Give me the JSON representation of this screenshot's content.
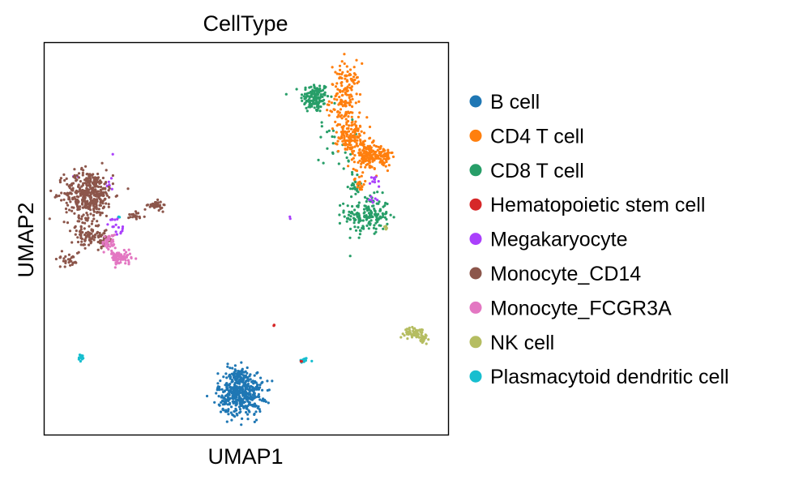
{
  "chart_data": {
    "type": "scatter",
    "title": "CellType",
    "xlabel": "UMAP1",
    "ylabel": "UMAP2",
    "xlim": [
      0,
      100
    ],
    "ylim": [
      0,
      100
    ],
    "ticks": "none",
    "grid": false,
    "legend_position": "right-outside",
    "legend": [
      {
        "name": "B cell",
        "color": "#1f77b4"
      },
      {
        "name": "CD4 T cell",
        "color": "#ff7f0e"
      },
      {
        "name": "CD8 T cell",
        "color": "#279e68"
      },
      {
        "name": "Hematopoietic stem cell",
        "color": "#d62728"
      },
      {
        "name": "Megakaryocyte",
        "color": "#aa40fc"
      },
      {
        "name": "Monocyte_CD14",
        "color": "#8c564b"
      },
      {
        "name": "Monocyte_FCGR3A",
        "color": "#e377c2"
      },
      {
        "name": "NK cell",
        "color": "#b5bd61"
      },
      {
        "name": "Plasmacytoid dendritic cell",
        "color": "#17becf"
      }
    ],
    "clusters": [
      {
        "series": "CD8 T cell",
        "blobs": [
          {
            "cx": 67,
            "cy": 86,
            "rx": 3.2,
            "ry": 3.5,
            "n": 140
          },
          {
            "cx": 80,
            "cy": 56,
            "rx": 5.0,
            "ry": 4.5,
            "n": 170
          },
          {
            "cx": 77,
            "cy": 64,
            "rx": 1.6,
            "ry": 3.0,
            "n": 25
          },
          {
            "cx": 72,
            "cy": 74,
            "rx": 4.0,
            "ry": 6.0,
            "n": 25
          }
        ]
      },
      {
        "series": "CD4 T cell",
        "blobs": [
          {
            "cx": 74.5,
            "cy": 86,
            "rx": 3.5,
            "ry": 8.0,
            "n": 170
          },
          {
            "cx": 76,
            "cy": 76,
            "rx": 2.8,
            "ry": 3.5,
            "n": 120
          },
          {
            "cx": 80,
            "cy": 71,
            "rx": 3.0,
            "ry": 3.0,
            "n": 140
          },
          {
            "cx": 84,
            "cy": 71,
            "rx": 2.0,
            "ry": 2.5,
            "n": 60
          },
          {
            "cx": 78,
            "cy": 64,
            "rx": 1.2,
            "ry": 2.0,
            "n": 20
          }
        ]
      },
      {
        "series": "Megakaryocyte",
        "blobs": [
          {
            "cx": 82,
            "cy": 65,
            "rx": 1.2,
            "ry": 1.5,
            "n": 10
          },
          {
            "cx": 81.5,
            "cy": 60,
            "rx": 1.0,
            "ry": 1.2,
            "n": 6
          },
          {
            "cx": 16,
            "cy": 65,
            "rx": 1.0,
            "ry": 3.5,
            "n": 8
          },
          {
            "cx": 17,
            "cy": 55,
            "rx": 1.0,
            "ry": 2.5,
            "n": 10
          },
          {
            "cx": 19,
            "cy": 52,
            "rx": 1.5,
            "ry": 1.5,
            "n": 8
          },
          {
            "cx": 61,
            "cy": 55.5,
            "rx": 0.3,
            "ry": 0.3,
            "n": 2
          },
          {
            "cx": 8,
            "cy": 66,
            "rx": 0.8,
            "ry": 0.8,
            "n": 2
          }
        ]
      },
      {
        "series": "Monocyte_CD14",
        "blobs": [
          {
            "cx": 11,
            "cy": 61.5,
            "rx": 5.5,
            "ry": 5.5,
            "n": 400
          },
          {
            "cx": 10,
            "cy": 51,
            "rx": 3.0,
            "ry": 3.0,
            "n": 70
          },
          {
            "cx": 14,
            "cy": 50,
            "rx": 3.0,
            "ry": 2.2,
            "n": 50
          },
          {
            "cx": 6,
            "cy": 45,
            "rx": 2.8,
            "ry": 2.2,
            "n": 30
          },
          {
            "cx": 27.5,
            "cy": 58.5,
            "rx": 1.6,
            "ry": 1.0,
            "n": 40
          },
          {
            "cx": 23,
            "cy": 56,
            "rx": 2.0,
            "ry": 0.8,
            "n": 20
          }
        ]
      },
      {
        "series": "Monocyte_FCGR3A",
        "blobs": [
          {
            "cx": 19,
            "cy": 45,
            "rx": 2.3,
            "ry": 1.6,
            "n": 70
          },
          {
            "cx": 16,
            "cy": 49,
            "rx": 1.5,
            "ry": 2.0,
            "n": 40
          },
          {
            "cx": 17.5,
            "cy": 46,
            "rx": 1.0,
            "ry": 1.2,
            "n": 15
          }
        ]
      },
      {
        "series": "B cell",
        "blobs": [
          {
            "cx": 48.5,
            "cy": 10.5,
            "rx": 5.0,
            "ry": 5.0,
            "n": 420
          },
          {
            "cx": 48,
            "cy": 15,
            "rx": 3.0,
            "ry": 2.0,
            "n": 60
          }
        ]
      },
      {
        "series": "NK cell",
        "blobs": [
          {
            "cx": 92,
            "cy": 26,
            "rx": 2.5,
            "ry": 1.2,
            "n": 60
          },
          {
            "cx": 94,
            "cy": 24.5,
            "rx": 1.2,
            "ry": 1.2,
            "n": 20
          },
          {
            "cx": 84.5,
            "cy": 53,
            "rx": 0.5,
            "ry": 0.8,
            "n": 6
          }
        ]
      },
      {
        "series": "Plasmacytoid dendritic cell",
        "blobs": [
          {
            "cx": 9,
            "cy": 19.5,
            "rx": 0.5,
            "ry": 1.0,
            "n": 15
          },
          {
            "cx": 64.5,
            "cy": 19,
            "rx": 1.2,
            "ry": 0.5,
            "n": 12
          },
          {
            "cx": 18.5,
            "cy": 55.5,
            "rx": 0.3,
            "ry": 0.3,
            "n": 2
          }
        ]
      },
      {
        "series": "Hematopoietic stem cell",
        "blobs": [
          {
            "cx": 56.8,
            "cy": 28,
            "rx": 0.4,
            "ry": 0.5,
            "n": 4
          },
          {
            "cx": 63.5,
            "cy": 18.5,
            "rx": 0.4,
            "ry": 0.3,
            "n": 3
          }
        ]
      }
    ]
  }
}
